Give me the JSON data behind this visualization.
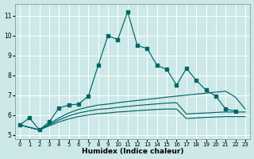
{
  "xlabel": "Humidex (Indice chaleur)",
  "bg_color": "#cce8e8",
  "grid_color": "#ffffff",
  "line_color": "#006666",
  "xlim": [
    -0.5,
    23.5
  ],
  "ylim": [
    4.8,
    11.6
  ],
  "yticks": [
    5,
    6,
    7,
    8,
    9,
    10,
    11
  ],
  "xticks": [
    0,
    1,
    2,
    3,
    4,
    5,
    6,
    7,
    8,
    9,
    10,
    11,
    12,
    13,
    14,
    15,
    16,
    17,
    18,
    19,
    20,
    21,
    22,
    23
  ],
  "main_x": [
    0,
    1,
    2,
    3,
    4,
    5,
    6,
    7,
    8,
    9,
    10,
    11,
    12,
    13,
    14,
    15,
    16,
    17,
    18,
    19,
    20,
    21,
    22
  ],
  "main_y": [
    5.5,
    5.85,
    5.25,
    5.65,
    6.35,
    6.5,
    6.55,
    6.95,
    8.5,
    10.0,
    9.8,
    11.2,
    9.5,
    9.35,
    8.5,
    8.3,
    7.5,
    8.35,
    7.75,
    7.25,
    6.95,
    6.3,
    6.2
  ],
  "trend1_x": [
    0,
    2,
    3,
    4,
    5,
    6,
    7,
    8,
    9,
    10,
    11,
    12,
    13,
    14,
    15,
    16,
    17,
    18,
    19,
    20,
    21,
    22,
    23
  ],
  "trend1_y": [
    5.5,
    5.25,
    5.55,
    5.85,
    6.1,
    6.28,
    6.4,
    6.5,
    6.55,
    6.62,
    6.68,
    6.73,
    6.79,
    6.84,
    6.9,
    6.95,
    7.0,
    7.05,
    7.1,
    7.15,
    7.2,
    6.9,
    6.3
  ],
  "trend2_x": [
    0,
    2,
    3,
    4,
    5,
    6,
    7,
    8,
    9,
    10,
    11,
    12,
    13,
    14,
    15,
    16,
    17,
    18,
    19,
    20,
    21,
    22,
    23
  ],
  "trend2_y": [
    5.5,
    5.25,
    5.5,
    5.75,
    5.95,
    6.1,
    6.2,
    6.28,
    6.32,
    6.38,
    6.43,
    6.48,
    6.52,
    6.56,
    6.6,
    6.62,
    6.05,
    6.08,
    6.1,
    6.13,
    6.15,
    6.15,
    6.15
  ],
  "trend3_x": [
    0,
    2,
    3,
    4,
    5,
    6,
    7,
    8,
    9,
    10,
    11,
    12,
    13,
    14,
    15,
    16,
    17,
    18,
    19,
    20,
    21,
    22,
    23
  ],
  "trend3_y": [
    5.5,
    5.25,
    5.45,
    5.65,
    5.8,
    5.92,
    6.0,
    6.07,
    6.1,
    6.15,
    6.18,
    6.22,
    6.25,
    6.28,
    6.3,
    6.3,
    5.82,
    5.85,
    5.88,
    5.9,
    5.92,
    5.92,
    5.92
  ]
}
